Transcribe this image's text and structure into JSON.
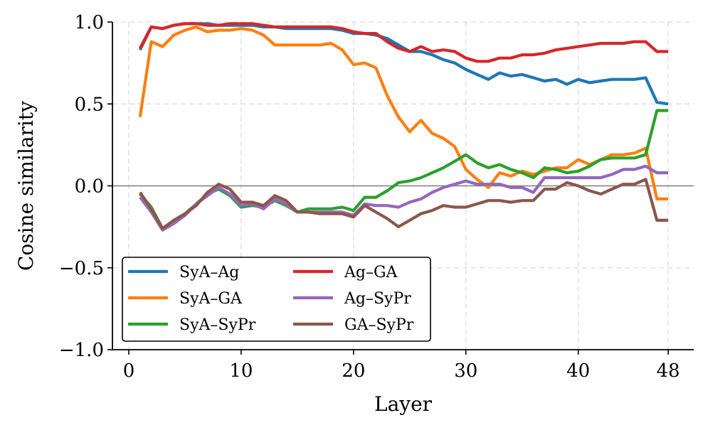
{
  "chart_data": {
    "type": "line",
    "xlabel": "Layer",
    "ylabel": "Cosine similarity",
    "xlim": [
      0,
      48
    ],
    "ylim": [
      -1.0,
      1.0
    ],
    "xticks": [
      0,
      10,
      20,
      30,
      40,
      48
    ],
    "xtick_labels": [
      "0",
      "10",
      "20",
      "30",
      "40",
      "48"
    ],
    "yticks": [
      1.0,
      0.5,
      0.0,
      -0.5,
      -1.0
    ],
    "ytick_labels": [
      "1.0",
      "0.5",
      "0.0",
      "−0.5",
      "−1.0"
    ],
    "grid": true,
    "reference_line": 0.0,
    "legend_position": "lower-left",
    "x": [
      1,
      2,
      3,
      4,
      5,
      6,
      7,
      8,
      9,
      10,
      11,
      12,
      13,
      14,
      15,
      16,
      17,
      18,
      19,
      20,
      21,
      22,
      23,
      24,
      25,
      26,
      27,
      28,
      29,
      30,
      31,
      32,
      33,
      34,
      35,
      36,
      37,
      38,
      39,
      40,
      41,
      42,
      43,
      44,
      45,
      46,
      47,
      48
    ],
    "series": [
      {
        "name": "SyA–Ag",
        "color": "#1f77b4",
        "values": [
          0.83,
          0.97,
          0.96,
          0.98,
          0.99,
          0.99,
          0.99,
          0.98,
          0.98,
          0.98,
          0.98,
          0.97,
          0.97,
          0.96,
          0.96,
          0.96,
          0.96,
          0.96,
          0.95,
          0.93,
          0.93,
          0.92,
          0.9,
          0.86,
          0.82,
          0.82,
          0.8,
          0.77,
          0.75,
          0.71,
          0.68,
          0.65,
          0.69,
          0.67,
          0.68,
          0.66,
          0.64,
          0.65,
          0.62,
          0.65,
          0.63,
          0.64,
          0.65,
          0.65,
          0.65,
          0.66,
          0.51,
          0.5
        ]
      },
      {
        "name": "SyA–GA",
        "color": "#ff7f0e",
        "values": [
          0.42,
          0.88,
          0.85,
          0.92,
          0.95,
          0.97,
          0.94,
          0.95,
          0.95,
          0.96,
          0.95,
          0.92,
          0.86,
          0.86,
          0.86,
          0.86,
          0.86,
          0.87,
          0.83,
          0.74,
          0.75,
          0.72,
          0.55,
          0.42,
          0.33,
          0.4,
          0.32,
          0.29,
          0.24,
          0.1,
          0.04,
          -0.01,
          0.08,
          0.06,
          0.09,
          0.07,
          0.09,
          0.11,
          0.11,
          0.16,
          0.13,
          0.16,
          0.19,
          0.19,
          0.2,
          0.23,
          -0.08,
          -0.08
        ]
      },
      {
        "name": "SyA–SyPr",
        "color": "#2ca02c",
        "values": [
          -0.05,
          -0.13,
          -0.26,
          -0.22,
          -0.17,
          -0.11,
          -0.05,
          -0.02,
          -0.06,
          -0.13,
          -0.12,
          -0.13,
          -0.09,
          -0.12,
          -0.16,
          -0.14,
          -0.14,
          -0.14,
          -0.13,
          -0.15,
          -0.07,
          -0.07,
          -0.03,
          0.02,
          0.03,
          0.05,
          0.08,
          0.11,
          0.15,
          0.19,
          0.14,
          0.11,
          0.13,
          0.1,
          0.08,
          0.05,
          0.11,
          0.1,
          0.08,
          0.09,
          0.12,
          0.16,
          0.17,
          0.17,
          0.17,
          0.19,
          0.46,
          0.46
        ]
      },
      {
        "name": "Ag–GA",
        "color": "#d62728",
        "values": [
          0.84,
          0.97,
          0.96,
          0.98,
          0.99,
          0.99,
          0.98,
          0.98,
          0.99,
          0.99,
          0.99,
          0.98,
          0.97,
          0.97,
          0.97,
          0.97,
          0.97,
          0.97,
          0.96,
          0.94,
          0.93,
          0.93,
          0.88,
          0.84,
          0.82,
          0.85,
          0.82,
          0.83,
          0.82,
          0.78,
          0.76,
          0.76,
          0.78,
          0.78,
          0.8,
          0.8,
          0.81,
          0.83,
          0.84,
          0.85,
          0.86,
          0.87,
          0.87,
          0.87,
          0.88,
          0.88,
          0.82,
          0.82
        ]
      },
      {
        "name": "Ag–SyPr",
        "color": "#9467bd",
        "values": [
          -0.07,
          -0.16,
          -0.27,
          -0.23,
          -0.18,
          -0.11,
          -0.06,
          -0.01,
          -0.05,
          -0.12,
          -0.11,
          -0.14,
          -0.08,
          -0.11,
          -0.16,
          -0.16,
          -0.16,
          -0.16,
          -0.16,
          -0.18,
          -0.11,
          -0.12,
          -0.12,
          -0.13,
          -0.1,
          -0.08,
          -0.04,
          -0.01,
          0.01,
          0.03,
          0.01,
          0.01,
          0.01,
          -0.01,
          -0.01,
          -0.04,
          0.05,
          0.05,
          0.05,
          0.05,
          0.05,
          0.05,
          0.07,
          0.1,
          0.1,
          0.12,
          0.08,
          0.08
        ]
      },
      {
        "name": "GA–SyPr",
        "color": "#8c564b",
        "values": [
          -0.04,
          -0.14,
          -0.26,
          -0.21,
          -0.17,
          -0.12,
          -0.04,
          0.01,
          -0.02,
          -0.1,
          -0.1,
          -0.12,
          -0.06,
          -0.09,
          -0.16,
          -0.16,
          -0.17,
          -0.17,
          -0.17,
          -0.19,
          -0.12,
          -0.16,
          -0.2,
          -0.25,
          -0.21,
          -0.17,
          -0.15,
          -0.12,
          -0.13,
          -0.13,
          -0.11,
          -0.09,
          -0.09,
          -0.1,
          -0.09,
          -0.09,
          -0.02,
          -0.02,
          0.02,
          0.0,
          -0.03,
          -0.05,
          -0.02,
          0.01,
          0.01,
          0.04,
          -0.21,
          -0.21
        ]
      }
    ]
  }
}
